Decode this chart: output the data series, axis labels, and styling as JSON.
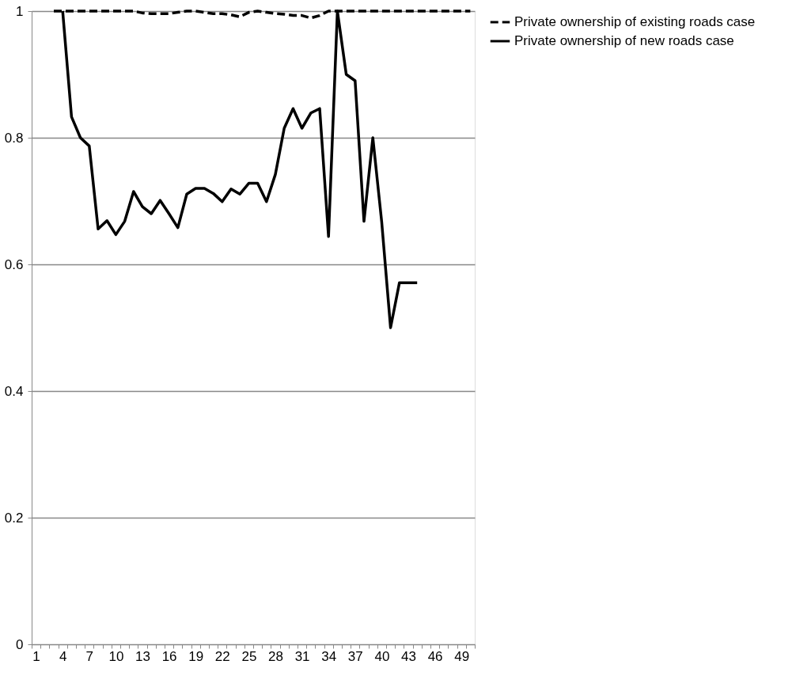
{
  "chart_data": {
    "type": "line",
    "categories": [
      "1",
      null,
      null,
      "4",
      null,
      null,
      "7",
      null,
      null,
      "10",
      null,
      null,
      "13",
      null,
      null,
      "16",
      null,
      null,
      "19",
      null,
      null,
      "22",
      null,
      null,
      "25",
      null,
      null,
      "28",
      null,
      null,
      "31",
      null,
      null,
      "34",
      null,
      null,
      "37",
      null,
      null,
      "40",
      null,
      null,
      "43",
      null,
      null,
      "46",
      null,
      null,
      "49",
      null
    ],
    "series": [
      {
        "name": "Private ownership of existing roads case",
        "color": "#000000",
        "line_style": "dashed",
        "values": [
          null,
          null,
          1,
          1,
          1,
          1,
          1,
          1,
          1,
          1,
          1,
          1,
          0.997,
          0.996,
          0.996,
          0.996,
          0.998,
          1,
          1,
          0.998,
          0.996,
          0.996,
          0.994,
          0.991,
          0.998,
          1,
          0.998,
          0.996,
          0.995,
          0.993,
          0.993,
          0.989,
          0.993,
          1,
          1,
          1,
          1,
          1,
          1,
          1,
          1,
          1,
          1,
          1,
          1,
          1,
          1,
          1,
          1,
          1
        ]
      },
      {
        "name": "Private ownership of new roads case",
        "color": "#000000",
        "line_style": "solid",
        "values": [
          null,
          null,
          null,
          1,
          0.833,
          0.8,
          0.787,
          0.656,
          0.669,
          0.647,
          0.668,
          0.715,
          0.691,
          0.68,
          0.701,
          0.68,
          0.658,
          0.711,
          0.72,
          0.72,
          0.712,
          0.699,
          0.719,
          0.711,
          0.728,
          0.728,
          0.699,
          0.742,
          0.815,
          0.846,
          0.815,
          0.839,
          0.846,
          0.644,
          1,
          0.9,
          0.89,
          0.668,
          0.8,
          0.667,
          0.5,
          0.571,
          0.571,
          0.571,
          null,
          null,
          null,
          null,
          null,
          null
        ]
      }
    ],
    "ylim": [
      0,
      1
    ],
    "yticks": [
      0,
      0.2,
      0.4,
      0.6,
      0.8,
      1
    ],
    "grid": "y",
    "legend": "right",
    "marker": "none"
  }
}
